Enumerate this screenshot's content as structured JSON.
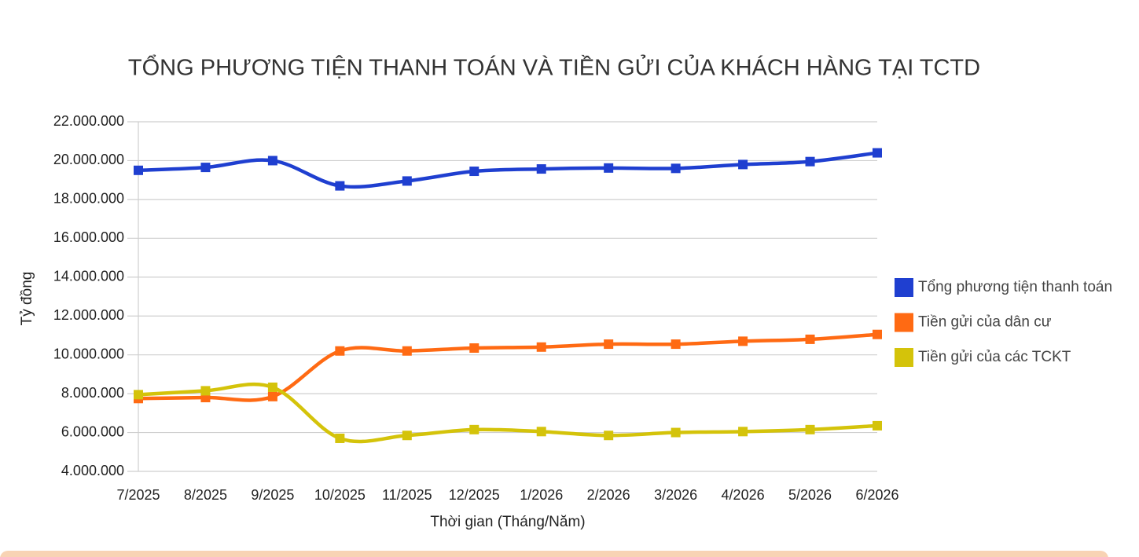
{
  "chart_data": {
    "type": "line",
    "title": "TỔNG PHƯƠNG TIỆN THANH TOÁN VÀ TIỀN GỬI CỦA KHÁCH HÀNG TẠI TCTD",
    "x_label": "Thời gian (Tháng/Năm)",
    "y_label": "Tỷ đồng",
    "categories": [
      "7/2025",
      "8/2025",
      "9/2025",
      "10/2025",
      "11/2025",
      "12/2025",
      "1/2026",
      "2/2026",
      "3/2026",
      "4/2026",
      "5/2026",
      "6/2026"
    ],
    "series": [
      {
        "name": "Tổng phương tiện thanh toán",
        "color": "#1f3fd0",
        "values": [
          19500000,
          19650000,
          20000000,
          18700000,
          18950000,
          19450000,
          19570000,
          19620000,
          19600000,
          19800000,
          19950000,
          20400000
        ]
      },
      {
        "name": "Tiền gửi của dân cư",
        "color": "#ff6a13",
        "values": [
          7750000,
          7800000,
          7850000,
          10200000,
          10200000,
          10350000,
          10400000,
          10550000,
          10550000,
          10700000,
          10800000,
          11050000
        ]
      },
      {
        "name": "Tiền gửi của các TCKT",
        "color": "#d4c30a",
        "values": [
          7950000,
          8150000,
          8330000,
          5700000,
          5850000,
          6150000,
          6050000,
          5850000,
          6000000,
          6050000,
          6150000,
          6350000
        ]
      }
    ],
    "ylim": [
      4000000,
      22000000
    ],
    "yticks": [
      {
        "value": 4000000,
        "label": "4.000.000"
      },
      {
        "value": 6000000,
        "label": "6.000.000"
      },
      {
        "value": 8000000,
        "label": "8.000.000"
      },
      {
        "value": 10000000,
        "label": "10.000.000"
      },
      {
        "value": 12000000,
        "label": "12.000.000"
      },
      {
        "value": 14000000,
        "label": "14.000.000"
      },
      {
        "value": 16000000,
        "label": "16.000.000"
      },
      {
        "value": 18000000,
        "label": "18.000.000"
      },
      {
        "value": 20000000,
        "label": "20.000.000"
      },
      {
        "value": 22000000,
        "label": "22.000.000"
      }
    ],
    "grid": true,
    "smooth": true,
    "legend": "right"
  }
}
